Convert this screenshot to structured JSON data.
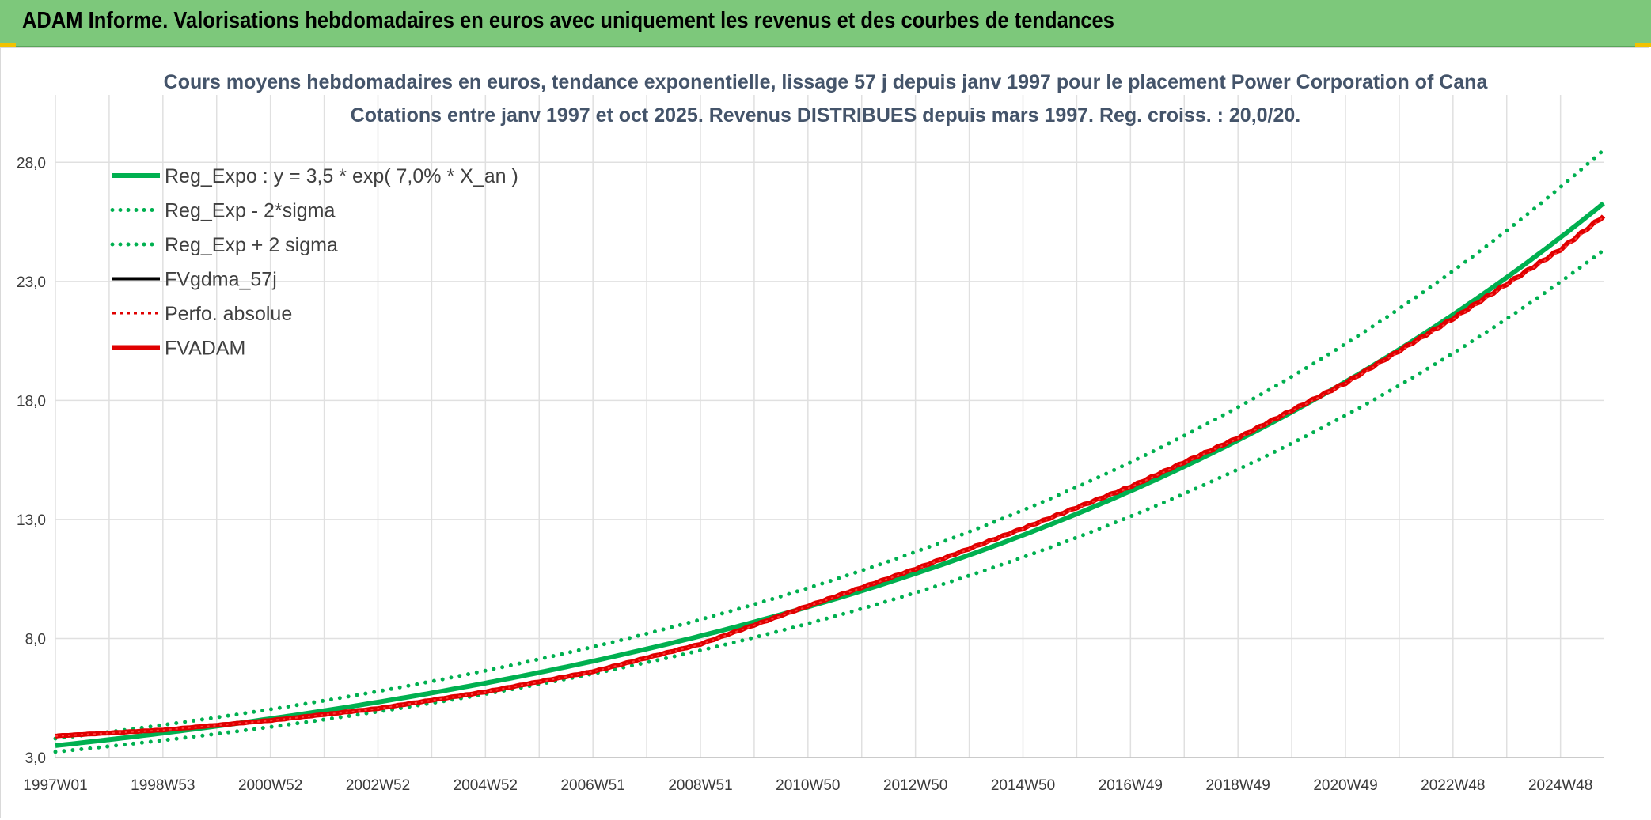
{
  "header": {
    "title": "ADAM Informe. Valorisations hebdomadaires en euros avec uniquement les revenus et des courbes de tendances"
  },
  "colors": {
    "banner": "#7dc87b",
    "trend": "#00b050",
    "fvadam": "#e00000",
    "fvgdma": "#000000",
    "grid": "#e0e0e0",
    "title_text": "#44546a"
  },
  "chart_data": {
    "type": "line",
    "title_lines": [
      "Cours moyens hebdomadaires en euros, tendance exponentielle, lissage 57 j depuis janv 1997 pour le placement Power Corporation of Cana",
      "Cotations entre janv 1997 et oct 2025. Revenus DISTRIBUES depuis mars 1997. Reg. croiss. : 20,0/20."
    ],
    "xlabel": "",
    "ylabel": "",
    "x_tick_labels": [
      "1997W01",
      "1998W53",
      "2000W52",
      "2002W52",
      "2004W52",
      "2006W51",
      "2008W51",
      "2010W50",
      "2012W50",
      "2014W50",
      "2016W49",
      "2018W49",
      "2020W49",
      "2022W48",
      "2024W48"
    ],
    "y_tick_labels": [
      "3,0",
      "8,0",
      "13,0",
      "18,0",
      "23,0",
      "28,0"
    ],
    "y_ticks": [
      3,
      8,
      13,
      18,
      23,
      28
    ],
    "ylim": [
      3,
      28
    ],
    "xlim_years": [
      0,
      28.8
    ],
    "grid": true,
    "legend_position": "top-left",
    "regression": {
      "a": 3.5,
      "rate": 0.07,
      "sigma_factor_minus": 0.925,
      "sigma_factor_plus": 1.085
    },
    "series": [
      {
        "name": "Reg_Expo : y = 3,5 * exp( 7,0% *  X_an )",
        "style": "solid-thick",
        "color": "#00b050",
        "x": [
          0,
          2,
          4,
          6,
          8,
          10,
          12,
          14,
          16,
          18,
          20,
          22,
          24,
          26,
          28,
          28.8
        ],
        "values": [
          3.5,
          4.03,
          4.62,
          5.3,
          6.1,
          7.0,
          8.05,
          9.25,
          10.6,
          12.2,
          14.1,
          16.2,
          18.6,
          21.6,
          24.9,
          26.2
        ]
      },
      {
        "name": "Reg_Exp - 2*sigma",
        "style": "dotted",
        "color": "#00b050",
        "x": [
          0,
          2,
          4,
          6,
          8,
          10,
          12,
          14,
          16,
          18,
          20,
          22,
          24,
          26,
          28,
          28.8
        ],
        "values": [
          3.24,
          3.73,
          4.27,
          4.9,
          5.64,
          6.48,
          7.45,
          8.56,
          9.8,
          11.3,
          13.0,
          15.0,
          17.2,
          20.0,
          23.0,
          24.2
        ]
      },
      {
        "name": "Reg_Exp + 2 sigma",
        "style": "dotted",
        "color": "#00b050",
        "x": [
          0,
          2,
          4,
          6,
          8,
          10,
          12,
          14,
          16,
          18,
          20,
          22,
          24,
          26,
          28,
          28.8
        ],
        "values": [
          3.8,
          4.37,
          5.01,
          5.75,
          6.62,
          7.6,
          8.73,
          10.0,
          11.5,
          13.2,
          15.3,
          17.6,
          20.2,
          23.4,
          27.0,
          28.4
        ]
      },
      {
        "name": "FVgdma_57j",
        "style": "solid",
        "color": "#000000",
        "x": [
          0,
          2,
          4,
          6,
          8,
          10,
          12,
          14,
          16,
          18,
          20,
          22,
          24,
          26,
          28,
          28.8
        ],
        "values": [
          3.9,
          4.15,
          4.55,
          5.05,
          5.75,
          6.6,
          7.75,
          9.35,
          10.9,
          12.6,
          14.35,
          16.4,
          18.7,
          21.4,
          24.3,
          25.7
        ]
      },
      {
        "name": "Perfo. absolue",
        "style": "dotted",
        "color": "#e00000",
        "x": [
          0,
          2,
          4,
          6,
          8,
          10,
          12,
          14,
          16,
          18,
          20,
          22,
          24,
          26,
          28,
          28.8
        ],
        "values": [
          3.9,
          4.15,
          4.55,
          5.05,
          5.75,
          6.6,
          7.75,
          9.35,
          10.9,
          12.6,
          14.35,
          16.4,
          18.7,
          21.4,
          24.3,
          25.7
        ]
      },
      {
        "name": "FVADAM",
        "style": "solid-thick",
        "color": "#e00000",
        "x": [
          0,
          2,
          4,
          6,
          8,
          10,
          12,
          14,
          16,
          18,
          20,
          22,
          24,
          26,
          28,
          28.8
        ],
        "values": [
          3.9,
          4.15,
          4.55,
          5.05,
          5.75,
          6.6,
          7.75,
          9.35,
          10.9,
          12.6,
          14.35,
          16.4,
          18.7,
          21.4,
          24.3,
          25.7
        ]
      }
    ]
  }
}
